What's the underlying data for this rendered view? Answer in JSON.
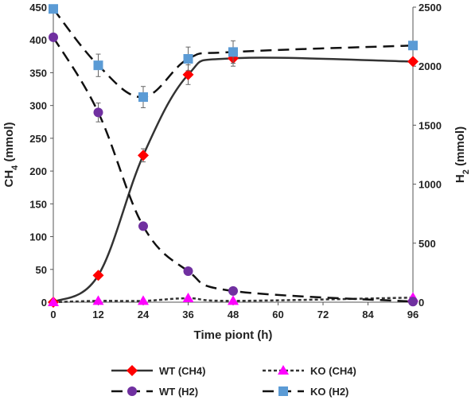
{
  "chart_data": {
    "type": "line",
    "x_label": "Time piont (h)",
    "x_ticks": [
      "0",
      "12",
      "24",
      "36",
      "48",
      "60",
      "72",
      "84",
      "96"
    ],
    "y_left": {
      "label_main": "CH",
      "label_sub": "4",
      "label_tail": " (mmol)",
      "range": [
        0,
        450
      ],
      "ticks": [
        "0",
        "50",
        "100",
        "150",
        "200",
        "250",
        "300",
        "350",
        "400",
        "450"
      ]
    },
    "y_right": {
      "label_main": "H",
      "label_sub": "2",
      "label_tail": " (mmol)",
      "range": [
        0,
        2500
      ],
      "ticks": [
        "0",
        "500",
        "1000",
        "1500",
        "2000",
        "2500"
      ]
    },
    "series": [
      {
        "name": "WT (CH4)",
        "axis": "left",
        "x": [
          0,
          12,
          24,
          36,
          48,
          96
        ],
        "y": [
          0,
          41,
          224,
          347,
          372,
          367
        ],
        "err": [
          0,
          0,
          10,
          15,
          12,
          0
        ],
        "color": "#ff0000",
        "marker": "diamond",
        "line": "solid",
        "lineColor": "#333333"
      },
      {
        "name": "KO (CH4)",
        "axis": "left",
        "x": [
          0,
          12,
          24,
          36,
          48,
          96
        ],
        "y": [
          0,
          2,
          2,
          6,
          2,
          7
        ],
        "err": [
          0,
          0,
          0,
          0,
          0,
          0
        ],
        "color": "#ff00ff",
        "marker": "triangle",
        "line": "dotted",
        "lineColor": "#333333"
      },
      {
        "name": "WT (H2)",
        "axis": "right",
        "x": [
          0,
          12,
          24,
          36,
          48,
          96
        ],
        "y": [
          2245,
          1608,
          644,
          263,
          95,
          5
        ],
        "err": [
          0,
          80,
          0,
          0,
          0,
          0
        ],
        "color": "#7030a0",
        "marker": "circle",
        "line": "dashed",
        "lineColor": "#111111"
      },
      {
        "name": "KO (H2)",
        "axis": "right",
        "x": [
          0,
          12,
          24,
          36,
          48,
          96
        ],
        "y": [
          2485,
          2007,
          1738,
          2062,
          2120,
          2175
        ],
        "err": [
          0,
          95,
          90,
          100,
          95,
          0
        ],
        "color": "#5b9bd5",
        "marker": "square",
        "line": "dashed",
        "lineColor": "#111111"
      }
    ]
  }
}
